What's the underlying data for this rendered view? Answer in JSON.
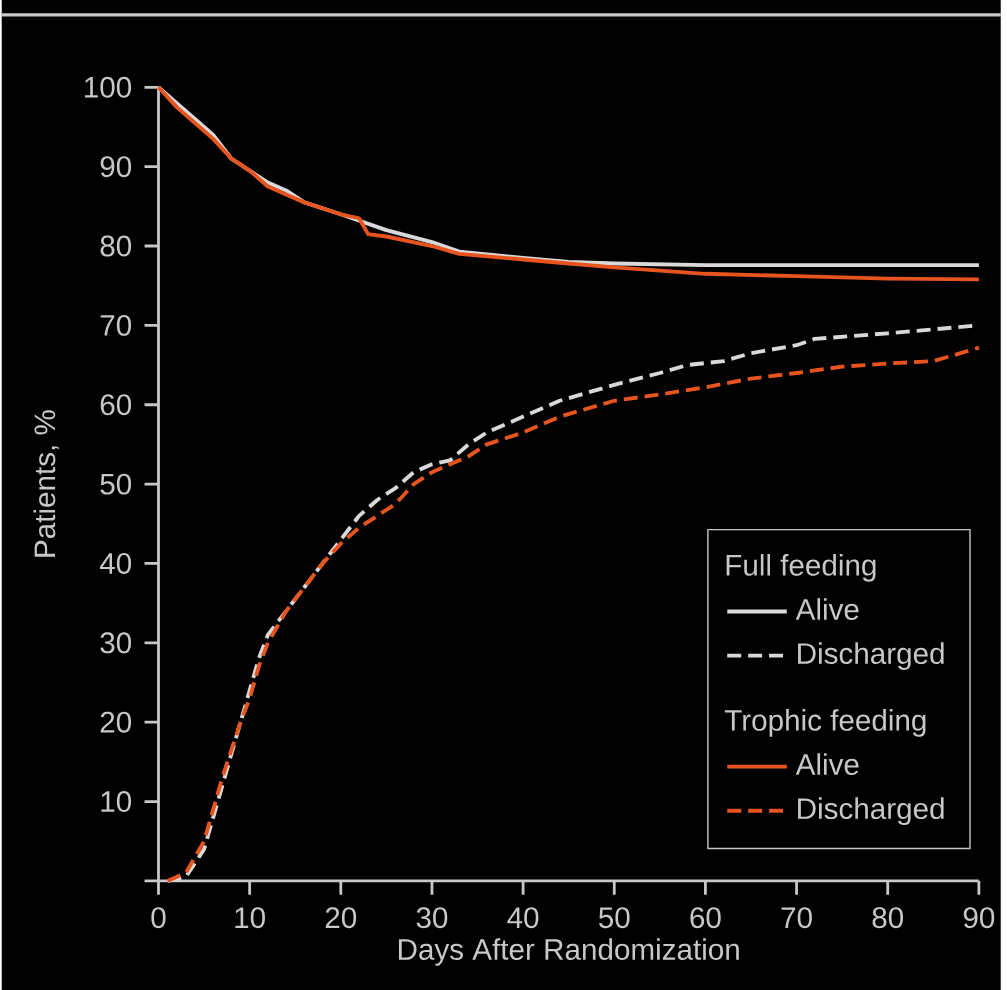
{
  "chart_data": {
    "type": "line",
    "xlabel": "Days After Randomization",
    "ylabel": "Patients, %",
    "xlim": [
      0,
      90
    ],
    "ylim": [
      0,
      100
    ],
    "xticks": [
      0,
      10,
      20,
      30,
      40,
      50,
      60,
      70,
      80,
      90
    ],
    "yticks": [
      {
        "value": 0,
        "label": null
      },
      10,
      20,
      30,
      40,
      50,
      60,
      70,
      80,
      90,
      100
    ],
    "legend": "bottom right",
    "marker": "none",
    "annotations": [
      "Full feeding",
      "Trophic feeding"
    ],
    "series": [
      {
        "name": "Alive",
        "color": "#d9d9d9",
        "line_style": "solid",
        "x": [
          0,
          2,
          4,
          6,
          8,
          10,
          12,
          14,
          16,
          20,
          25,
          30,
          33,
          40,
          45,
          50,
          60,
          70,
          80,
          90
        ],
        "values": [
          100,
          98,
          96,
          94,
          91,
          89.5,
          88,
          87,
          85.5,
          84,
          82,
          80.5,
          79.3,
          78.5,
          78,
          77.8,
          77.6,
          77.6,
          77.6,
          77.6
        ]
      },
      {
        "name": "Discharged",
        "color": "#d9d9d9",
        "line_style": "dashed",
        "x": [
          1,
          3,
          5,
          7,
          9,
          10,
          11,
          12,
          14,
          16,
          18,
          20,
          22,
          24,
          26,
          28,
          30,
          32,
          34,
          36,
          40,
          44,
          50,
          55,
          58,
          62,
          65,
          70,
          72,
          80,
          90
        ],
        "values": [
          0,
          0.5,
          4,
          12,
          20,
          24,
          28,
          31,
          34,
          37,
          40,
          43,
          46,
          48,
          49.5,
          51.5,
          52.5,
          53,
          55,
          56.5,
          58.5,
          60.5,
          62.5,
          64,
          65,
          65.5,
          66.5,
          67.5,
          68.3,
          69,
          70
        ]
      },
      {
        "name": "Alive",
        "color": "#e8541e",
        "line_style": "solid",
        "x": [
          0,
          2,
          4,
          6,
          8,
          10,
          12,
          14,
          16,
          20,
          22,
          23,
          25,
          30,
          33,
          40,
          45,
          50,
          60,
          70,
          80,
          90
        ],
        "values": [
          100,
          97.5,
          95.5,
          93.5,
          91,
          89.5,
          87.5,
          86.5,
          85.5,
          84,
          83.5,
          81.5,
          81.2,
          80,
          79,
          78.3,
          77.8,
          77.3,
          76.5,
          76.2,
          75.9,
          75.8
        ]
      },
      {
        "name": "Discharged",
        "color": "#e8541e",
        "line_style": "dashed",
        "x": [
          1,
          3,
          5,
          7,
          9,
          10,
          11,
          12,
          14,
          16,
          18,
          20,
          22,
          24,
          26,
          28,
          30,
          32,
          34,
          36,
          40,
          44,
          50,
          55,
          60,
          65,
          70,
          75,
          80,
          85,
          88,
          90
        ],
        "values": [
          0,
          1,
          5,
          13,
          20,
          23,
          27,
          30,
          34,
          37,
          40,
          42.5,
          44.5,
          46,
          47.5,
          50,
          51.5,
          52.5,
          53.5,
          55,
          56.5,
          58.5,
          60.5,
          61.3,
          62.2,
          63.3,
          64,
          64.8,
          65.2,
          65.5,
          66.5,
          67.2
        ]
      }
    ]
  }
}
